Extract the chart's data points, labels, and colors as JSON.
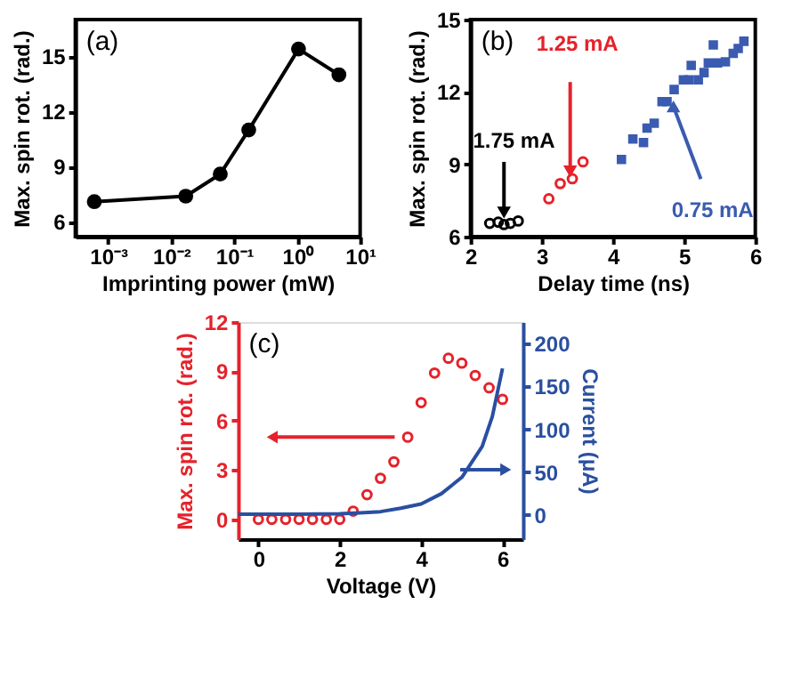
{
  "chart_data": [
    {
      "type": "line",
      "title": "(a)",
      "xlabel": "Imprinting power (mW)",
      "ylabel": "Max. spin rot. (rad.)",
      "log": "x",
      "marker": "circle",
      "x": [
        0.0006,
        0.017,
        0.06,
        0.17,
        1.05,
        4.6
      ],
      "series": [
        {
          "color": "#000000",
          "values": [
            7.1,
            7.4,
            8.6,
            11.0,
            15.4,
            14.0
          ]
        }
      ],
      "xlim": [
        0.0003,
        10
      ],
      "xticks": [
        {
          "value": 0.001,
          "label": "10⁻³"
        },
        {
          "value": 0.01,
          "label": "10⁻²"
        },
        {
          "value": 0.1,
          "label": "10⁻¹"
        },
        {
          "value": 1,
          "label": "10⁰"
        },
        {
          "value": 10,
          "label": "10¹"
        }
      ],
      "ylim": [
        5.2,
        17
      ],
      "yticks": [
        6,
        9,
        12,
        15
      ]
    },
    {
      "type": "scatter",
      "title": "(b)",
      "xlabel": "Delay time (ns)",
      "ylabel": "Max. spin rot. (rad.)",
      "series": [
        {
          "color": "#000000",
          "marker": "circle",
          "x": [
            2.27,
            2.39,
            2.47,
            2.56,
            2.67
          ],
          "values": [
            6.55,
            6.6,
            6.5,
            6.55,
            6.65
          ]
        },
        {
          "color": "#e5222b",
          "marker": "circle",
          "x": [
            3.1,
            3.26,
            3.43,
            3.58
          ],
          "values": [
            7.57,
            8.2,
            8.4,
            9.1
          ]
        },
        {
          "color": "#3a5bb0",
          "marker": "square",
          "x": [
            4.12,
            4.28,
            4.43,
            4.48,
            4.58,
            4.69,
            4.76,
            4.86,
            4.99,
            5.07,
            5.1,
            5.2,
            5.28,
            5.34,
            5.41,
            5.47,
            5.58,
            5.69,
            5.76,
            5.84
          ],
          "values": [
            9.2,
            10.05,
            9.9,
            10.5,
            10.7,
            11.6,
            11.6,
            12.1,
            12.5,
            12.5,
            13.1,
            12.5,
            12.8,
            13.2,
            13.95,
            13.2,
            13.25,
            13.6,
            13.8,
            14.1
          ]
        }
      ],
      "annotations": [
        {
          "text": "1.75 mA",
          "x": 2.47,
          "y": 7.0
        },
        {
          "text": "1.25 mA",
          "x": 3.4,
          "y": 8.7
        },
        {
          "text": "0.75 mA",
          "x": 4.85,
          "y": 11.4
        }
      ],
      "xlim": [
        2,
        6
      ],
      "xticks": [
        2,
        3,
        4,
        5,
        6
      ],
      "ylim": [
        6,
        15
      ],
      "yticks": [
        6,
        9,
        12,
        15
      ]
    },
    {
      "type": "scatter",
      "title": "(c)",
      "xlabel": "Voltage (V)",
      "ylabel": "Max. spin rot. (rad.)",
      "y2label": "Current (μA)",
      "series": [
        {
          "type": "scatter",
          "axis": "y",
          "color": "#e5222b",
          "marker": "circle",
          "x": [
            0,
            0.33,
            0.67,
            1,
            1.33,
            1.67,
            2,
            2.33,
            2.67,
            3,
            3.33,
            3.67,
            4,
            4.33,
            4.67,
            5,
            5.33,
            5.67,
            6
          ],
          "values": [
            0,
            0,
            0,
            0,
            0,
            0,
            0,
            0.5,
            1.5,
            2.5,
            3.5,
            5.0,
            7.1,
            8.9,
            9.8,
            9.5,
            8.75,
            8.0,
            7.3
          ]
        },
        {
          "type": "line",
          "axis": "y2",
          "color": "#2a4fa0",
          "x": [
            -0.5,
            1,
            2,
            2.5,
            3,
            3.5,
            4,
            4.5,
            5,
            5.5,
            5.75,
            6
          ],
          "values": [
            1,
            1,
            1.5,
            2.5,
            4,
            8,
            13,
            25,
            44,
            80,
            115,
            171
          ]
        }
      ],
      "xlim": [
        -0.5,
        6.5
      ],
      "xticks": [
        0,
        2,
        4,
        6
      ],
      "ylim": [
        -1.2,
        12
      ],
      "yticks": [
        0,
        3,
        6,
        9,
        12
      ],
      "y2lim": [
        -28,
        225
      ],
      "y2ticks": [
        0,
        50,
        100,
        150,
        200
      ]
    }
  ]
}
